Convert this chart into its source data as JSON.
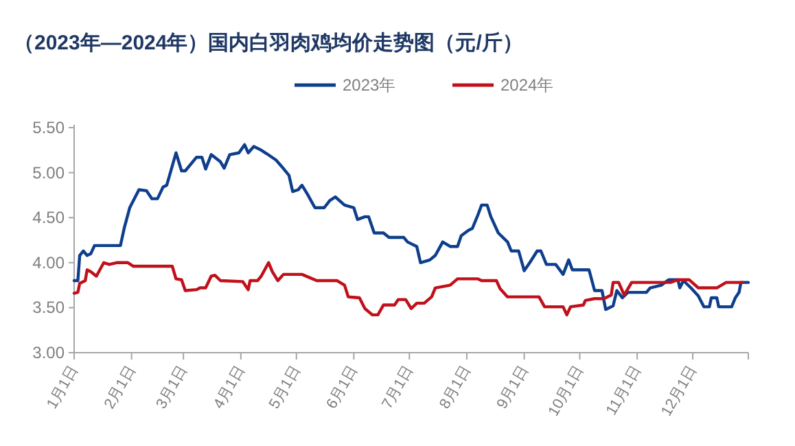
{
  "chart_data": {
    "type": "line",
    "title": "（2023年—2024年）国内白羽肉鸡均价走势图（元/斤）",
    "legend": "top",
    "xlim": [
      "--01-01",
      "--12-31"
    ],
    "xticks": [
      {
        "value": "--01-01",
        "label": "1月1日"
      },
      {
        "value": "--02-01",
        "label": "2月1日"
      },
      {
        "value": "--03-01",
        "label": "3月1日"
      },
      {
        "value": "--04-01",
        "label": "4月1日"
      },
      {
        "value": "--05-01",
        "label": "5月1日"
      },
      {
        "value": "--06-01",
        "label": "6月1日"
      },
      {
        "value": "--07-01",
        "label": "7月1日"
      },
      {
        "value": "--08-01",
        "label": "8月1日"
      },
      {
        "value": "--09-01",
        "label": "9月1日"
      },
      {
        "value": "--10-01",
        "label": "10月1日"
      },
      {
        "value": "--11-01",
        "label": "11月1日"
      },
      {
        "value": "--12-01",
        "label": "12月1日"
      },
      {
        "value": "--12-31",
        "label": null
      }
    ],
    "ylim": [
      3.0,
      5.5
    ],
    "yticks": [
      {
        "value": 3.0,
        "label": "3.00"
      },
      {
        "value": 3.5,
        "label": "3.50"
      },
      {
        "value": 4.0,
        "label": "4.00"
      },
      {
        "value": 4.5,
        "label": "4.50"
      },
      {
        "value": 5.0,
        "label": "5.00"
      },
      {
        "value": 5.5,
        "label": "5.50"
      }
    ],
    "series": [
      {
        "name": "2023年",
        "color": "#0e3e8c",
        "x": [
          "--01-01",
          "--01-03",
          "--01-04",
          "--01-06",
          "--01-08",
          "--01-10",
          "--01-12",
          "--01-26",
          "--01-28",
          "--01-31",
          "--02-05",
          "--02-09",
          "--02-12",
          "--02-15",
          "--02-18",
          "--02-20",
          "--02-25",
          "--02-28",
          "--03-02",
          "--03-08",
          "--03-11",
          "--03-13",
          "--03-16",
          "--03-21",
          "--03-23",
          "--03-26",
          "--03-31",
          "--04-03",
          "--04-05",
          "--04-08",
          "--04-12",
          "--04-15",
          "--04-20",
          "--04-23",
          "--04-27",
          "--04-29",
          "--05-02",
          "--05-04",
          "--05-07",
          "--05-11",
          "--05-16",
          "--05-19",
          "--05-22",
          "--05-27",
          "--06-01",
          "--06-03",
          "--06-07",
          "--06-09",
          "--06-12",
          "--06-17",
          "--06-20",
          "--06-28",
          "--06-30",
          "--07-05",
          "--07-07",
          "--07-12",
          "--07-15",
          "--07-19",
          "--07-23",
          "--07-27",
          "--07-29",
          "--08-02",
          "--08-04",
          "--08-07",
          "--08-09",
          "--08-12",
          "--08-14",
          "--08-18",
          "--08-23",
          "--08-25",
          "--08-29",
          "--09-01",
          "--09-04",
          "--09-08",
          "--09-10",
          "--09-13",
          "--09-18",
          "--09-22",
          "--09-25",
          "--09-27",
          "--10-06",
          "--10-09",
          "--10-13",
          "--10-15",
          "--10-19",
          "--10-21",
          "--10-24",
          "--10-27",
          "--11-06",
          "--11-08",
          "--11-14",
          "--11-18",
          "--11-23",
          "--11-24",
          "--11-26",
          "--11-30",
          "--12-04",
          "--12-07",
          "--12-10",
          "--12-11",
          "--12-14",
          "--12-15",
          "--12-22",
          "--12-24",
          "--12-26",
          "--12-27",
          "--12-31"
        ],
        "values": [
          3.8,
          3.8,
          4.08,
          4.13,
          4.08,
          4.1,
          4.19,
          4.19,
          4.38,
          4.61,
          4.81,
          4.8,
          4.71,
          4.71,
          4.84,
          4.86,
          5.22,
          5.02,
          5.02,
          5.17,
          5.17,
          5.04,
          5.2,
          5.12,
          5.05,
          5.2,
          5.22,
          5.31,
          5.22,
          5.29,
          5.25,
          5.21,
          5.14,
          5.07,
          4.97,
          4.79,
          4.81,
          4.86,
          4.76,
          4.61,
          4.61,
          4.69,
          4.73,
          4.64,
          4.61,
          4.48,
          4.51,
          4.51,
          4.33,
          4.33,
          4.28,
          4.28,
          4.23,
          4.18,
          4.0,
          4.03,
          4.08,
          4.23,
          4.18,
          4.18,
          4.3,
          4.36,
          4.38,
          4.53,
          4.64,
          4.64,
          4.51,
          4.33,
          4.23,
          4.13,
          4.13,
          3.91,
          4.0,
          4.13,
          4.13,
          3.98,
          3.98,
          3.87,
          4.03,
          3.92,
          3.92,
          3.69,
          3.69,
          3.48,
          3.52,
          3.69,
          3.61,
          3.67,
          3.67,
          3.72,
          3.75,
          3.81,
          3.81,
          3.72,
          3.8,
          3.72,
          3.63,
          3.51,
          3.51,
          3.61,
          3.61,
          3.51,
          3.51,
          3.61,
          3.67,
          3.78,
          3.78
        ]
      },
      {
        "name": "2024年",
        "color": "#c0101a",
        "x": [
          "--01-01",
          "--01-03",
          "--01-04",
          "--01-07",
          "--01-08",
          "--01-10",
          "--01-13",
          "--01-17",
          "--01-20",
          "--01-24",
          "--01-30",
          "--02-02",
          "--02-23",
          "--02-25",
          "--02-28",
          "--03-02",
          "--03-08",
          "--03-10",
          "--03-13",
          "--03-16",
          "--03-18",
          "--03-21",
          "--04-02",
          "--04-05",
          "--04-06",
          "--04-10",
          "--04-12",
          "--04-16",
          "--04-18",
          "--04-21",
          "--04-24",
          "--05-04",
          "--05-12",
          "--05-23",
          "--05-27",
          "--05-29",
          "--06-04",
          "--06-07",
          "--06-11",
          "--06-14",
          "--06-17",
          "--06-20",
          "--06-23",
          "--06-25",
          "--06-29",
          "--07-02",
          "--07-05",
          "--07-09",
          "--07-13",
          "--07-15",
          "--07-23",
          "--07-27",
          "--07-30",
          "--08-07",
          "--08-09",
          "--08-17",
          "--08-19",
          "--08-23",
          "--09-09",
          "--09-12",
          "--09-22",
          "--09-24",
          "--09-26",
          "--10-03",
          "--10-04",
          "--10-09",
          "--10-14",
          "--10-18",
          "--10-19",
          "--10-22",
          "--10-25",
          "--10-29",
          "--11-19",
          "--11-23",
          "--11-29",
          "--12-04",
          "--12-14",
          "--12-19",
          "--12-28"
        ],
        "values": [
          3.66,
          3.67,
          3.77,
          3.8,
          3.92,
          3.9,
          3.85,
          4.0,
          3.98,
          4.0,
          4.0,
          3.96,
          3.96,
          3.82,
          3.81,
          3.69,
          3.7,
          3.72,
          3.72,
          3.85,
          3.86,
          3.8,
          3.79,
          3.7,
          3.8,
          3.8,
          3.85,
          4.0,
          3.9,
          3.8,
          3.87,
          3.87,
          3.8,
          3.8,
          3.75,
          3.62,
          3.61,
          3.49,
          3.42,
          3.42,
          3.53,
          3.53,
          3.53,
          3.59,
          3.59,
          3.49,
          3.55,
          3.55,
          3.62,
          3.72,
          3.75,
          3.82,
          3.82,
          3.82,
          3.8,
          3.8,
          3.71,
          3.62,
          3.62,
          3.51,
          3.51,
          3.42,
          3.51,
          3.53,
          3.58,
          3.6,
          3.6,
          3.64,
          3.78,
          3.78,
          3.64,
          3.78,
          3.78,
          3.81,
          3.81,
          3.72,
          3.72,
          3.78,
          3.78
        ]
      }
    ]
  }
}
